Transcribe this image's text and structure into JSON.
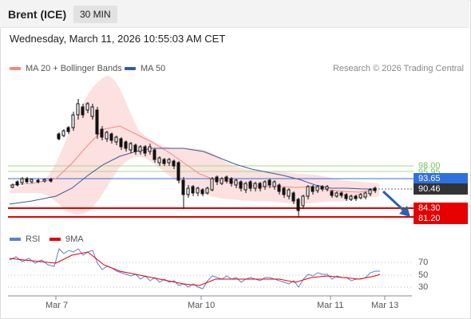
{
  "header": {
    "title": "Brent (ICE)",
    "interval": "30 MIN"
  },
  "timestamp": "Wednesday, March 11, 2026 10:55:03 AM CET",
  "legend": [
    {
      "label": "MA 20 + Bollinger Bands",
      "color": "#f28b82"
    },
    {
      "label": "MA 50",
      "color": "#3a5a9c"
    }
  ],
  "credit": "Research © 2026 Trading Central",
  "levels": [
    {
      "label": "98.00",
      "color": "#7cc35a",
      "kind": "text"
    },
    {
      "label": "95.95",
      "color": "#7cc35a",
      "kind": "text"
    },
    {
      "label": "93.65",
      "color": "#2f6fe0",
      "kind": "box"
    },
    {
      "label": "90.46",
      "color": "#333333",
      "kind": "box"
    },
    {
      "label": "84.30",
      "color": "#e60000",
      "kind": "box"
    },
    {
      "label": "81.20",
      "color": "#e60000",
      "kind": "box"
    }
  ],
  "rsi_legend": [
    {
      "label": "RSI",
      "color": "#5b7fd1"
    },
    {
      "label": "9MA",
      "color": "#e60000"
    }
  ],
  "rsi_ticks": [
    "70",
    "50",
    "30"
  ],
  "x_labels": [
    "Mar 7",
    "Mar 10",
    "Mar 11",
    "Mar 13"
  ]
}
